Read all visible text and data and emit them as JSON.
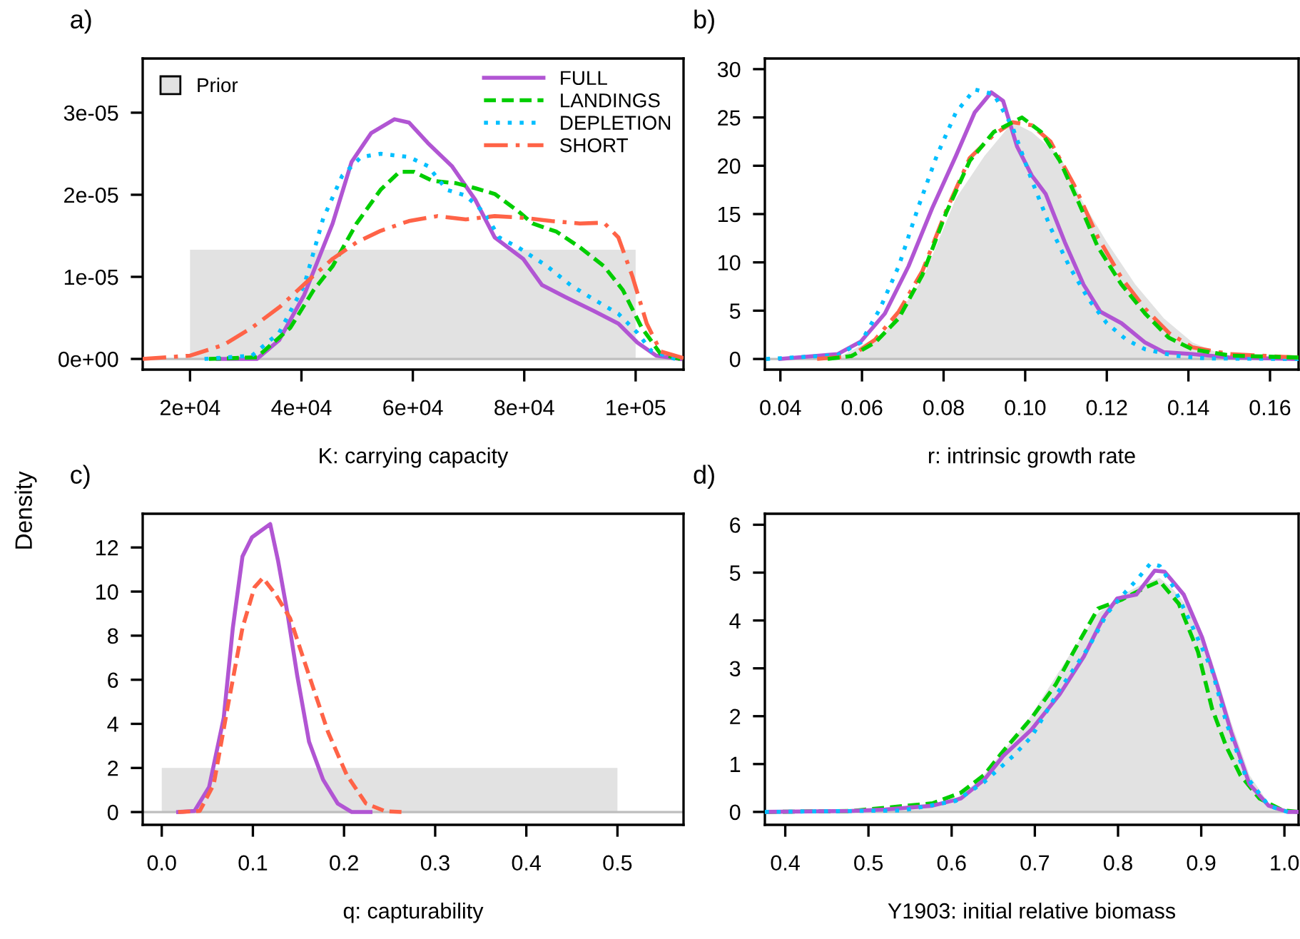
{
  "chart_data": [
    {
      "type": "line",
      "title": "a)",
      "xlabel": "K: carrying capacity",
      "ylabel": "Density",
      "legend": "top right",
      "xlim": [
        11500,
        108600
      ],
      "ylim": [
        -1.3e-06,
        3.66e-05
      ],
      "xticks": [
        {
          "value": 20000,
          "label": "2e+04"
        },
        {
          "value": 40000,
          "label": "4e+04"
        },
        {
          "value": 60000,
          "label": "6e+04"
        },
        {
          "value": 80000,
          "label": "8e+04"
        },
        {
          "value": 100000,
          "label": "1e+05"
        }
      ],
      "yticks": [
        {
          "value": 0,
          "label": "0e+00"
        },
        {
          "value": 1e-05,
          "label": "1e-05"
        },
        {
          "value": 2e-05,
          "label": "2e-05"
        },
        {
          "value": 3e-05,
          "label": "3e-05"
        }
      ],
      "ref_lines": [
        {
          "axis": "y",
          "value": 0,
          "color": "#bebebe"
        }
      ],
      "series": [
        {
          "type": "area",
          "name": "Prior",
          "color": "#e2e2e2",
          "x": [
            20000,
            20000,
            100000,
            100000
          ],
          "values": [
            0,
            1.33e-05,
            1.33e-05,
            0
          ]
        },
        {
          "name": "FULL",
          "color": "#b155d3",
          "line_style": "solid",
          "x": [
            25000,
            32000,
            36000,
            40500,
            45600,
            49000,
            52500,
            56700,
            59300,
            62700,
            67000,
            71200,
            74700,
            79800,
            83200,
            87500,
            92600,
            96900,
            100300,
            103700,
            108000
          ],
          "values": [
            0,
            0,
            2.3e-06,
            7.8e-06,
            1.65e-05,
            2.4e-05,
            2.75e-05,
            2.92e-05,
            2.88e-05,
            2.63e-05,
            2.35e-05,
            1.94e-05,
            1.48e-05,
            1.22e-05,
            9e-06,
            7.5e-06,
            5.8e-06,
            4.3e-06,
            2e-06,
            4e-07,
            0
          ]
        },
        {
          "name": "LANDINGS",
          "color": "#00cd00",
          "line_style": "dashed",
          "x": [
            23400,
            32000,
            38000,
            42200,
            45600,
            49900,
            54200,
            57600,
            60200,
            63500,
            67800,
            71200,
            74700,
            78900,
            81500,
            85800,
            90000,
            94300,
            97700,
            101100,
            104500,
            108000
          ],
          "values": [
            0,
            2e-07,
            3.8e-06,
            8.4e-06,
            1.13e-05,
            1.65e-05,
            2.06e-05,
            2.28e-05,
            2.28e-05,
            2.17e-05,
            2.14e-05,
            2.08e-05,
            2.01e-05,
            1.8e-05,
            1.65e-05,
            1.55e-05,
            1.36e-05,
            1.13e-05,
            8.4e-06,
            3.8e-06,
            6e-07,
            0
          ]
        },
        {
          "name": "DEPLETION",
          "color": "#00bfff",
          "line_style": "dotted",
          "x": [
            22600,
            31100,
            36000,
            40500,
            43900,
            47300,
            50700,
            54200,
            59300,
            62700,
            66100,
            69500,
            73000,
            75500,
            78900,
            84100,
            88300,
            92600,
            96900,
            100300,
            102800,
            107100
          ],
          "values": [
            0,
            4e-07,
            3.2e-06,
            9e-06,
            1.71e-05,
            2.23e-05,
            2.46e-05,
            2.5e-05,
            2.46e-05,
            2.35e-05,
            2.06e-05,
            1.99e-05,
            1.77e-05,
            1.48e-05,
            1.36e-05,
            1.13e-05,
            9e-06,
            7.2e-06,
            5.5e-06,
            3.2e-06,
            1e-06,
            0
          ]
        },
        {
          "name": "SHORT",
          "color": "#ff6347",
          "line_style": "dashdot",
          "x": [
            11500,
            20000,
            26000,
            31100,
            36200,
            41300,
            45600,
            49900,
            54200,
            59300,
            64400,
            69500,
            74700,
            79800,
            84900,
            90000,
            94300,
            96900,
            99400,
            102000,
            104500,
            108600
          ],
          "values": [
            0,
            4e-07,
            1.7e-06,
            3.8e-06,
            6.4e-06,
            9.6e-06,
            1.22e-05,
            1.42e-05,
            1.56e-05,
            1.68e-05,
            1.74e-05,
            1.7e-05,
            1.74e-05,
            1.72e-05,
            1.68e-05,
            1.65e-05,
            1.66e-05,
            1.48e-05,
            1.01e-05,
            4.3e-06,
            9e-07,
            1e-07
          ]
        }
      ]
    },
    {
      "type": "line",
      "title": "b)",
      "xlabel": "r: intrinsic growth rate",
      "xlim": [
        0.0362,
        0.167
      ],
      "ylim": [
        -1.1,
        31.1
      ],
      "xticks": [
        {
          "value": 0.04,
          "label": "0.04"
        },
        {
          "value": 0.06,
          "label": "0.06"
        },
        {
          "value": 0.08,
          "label": "0.08"
        },
        {
          "value": 0.1,
          "label": "0.10"
        },
        {
          "value": 0.12,
          "label": "0.12"
        },
        {
          "value": 0.14,
          "label": "0.14"
        },
        {
          "value": 0.16,
          "label": "0.16"
        }
      ],
      "yticks": [
        0,
        5,
        10,
        15,
        20,
        25,
        30
      ],
      "ref_lines": [
        {
          "axis": "y",
          "value": 0,
          "color": "#bebebe"
        }
      ],
      "series": [
        {
          "type": "area",
          "color": "#e2e2e2",
          "x": [
            0.048,
            0.054,
            0.0656,
            0.0748,
            0.083,
            0.09,
            0.0969,
            0.1016,
            0.1085,
            0.1143,
            0.12,
            0.127,
            0.134,
            0.141,
            0.148,
            0.158,
            0.167
          ],
          "values": [
            0,
            0.1,
            2.7,
            8.2,
            16.6,
            21.0,
            24.5,
            23.5,
            21.0,
            16.1,
            12.1,
            7.7,
            4.2,
            1.7,
            0.5,
            0.05,
            0
          ]
        },
        {
          "color": "#b155d3",
          "line_style": "solid",
          "x": [
            0.04,
            0.054,
            0.0597,
            0.0656,
            0.0714,
            0.0772,
            0.083,
            0.0876,
            0.0917,
            0.0946,
            0.098,
            0.1016,
            0.105,
            0.1097,
            0.1143,
            0.1184,
            0.1236,
            0.1294,
            0.134,
            0.141,
            0.15,
            0.167
          ],
          "values": [
            0,
            0.5,
            1.8,
            4.7,
            9.6,
            15.6,
            21.0,
            25.5,
            27.6,
            26.7,
            22.0,
            19.0,
            17.1,
            12.1,
            7.7,
            4.9,
            3.7,
            1.7,
            0.7,
            0.5,
            0.15,
            0
          ]
        },
        {
          "color": "#00bfff",
          "line_style": "dotted",
          "x": [
            0.0365,
            0.054,
            0.0597,
            0.0644,
            0.069,
            0.0737,
            0.0783,
            0.083,
            0.0876,
            0.0923,
            0.0969,
            0.1016,
            0.1062,
            0.1108,
            0.1155,
            0.12,
            0.1248,
            0.1294,
            0.1364,
            0.1445,
            0.167
          ],
          "values": [
            0,
            0.4,
            1.7,
            5.2,
            9.6,
            15.6,
            21.0,
            25.5,
            27.9,
            27.4,
            24.0,
            18.5,
            13.6,
            9.6,
            6.2,
            3.7,
            2.0,
            1.0,
            0.35,
            0.05,
            0
          ]
        },
        {
          "color": "#ff6347",
          "line_style": "dashdot",
          "x": [
            0.049,
            0.0574,
            0.0632,
            0.069,
            0.0748,
            0.0806,
            0.0864,
            0.0923,
            0.0969,
            0.1016,
            0.1062,
            0.112,
            0.1178,
            0.1236,
            0.1294,
            0.1352,
            0.141,
            0.1503,
            0.167
          ],
          "values": [
            0,
            0.3,
            2.0,
            4.9,
            9.1,
            15.3,
            20.8,
            23.2,
            24.5,
            24.2,
            22.5,
            18.0,
            12.6,
            8.4,
            5.2,
            2.7,
            1.2,
            0.5,
            0.15
          ]
        },
        {
          "color": "#00cd00",
          "line_style": "dashed",
          "x": [
            0.0516,
            0.0574,
            0.0632,
            0.069,
            0.0748,
            0.0806,
            0.0864,
            0.0923,
            0.0992,
            0.1039,
            0.1085,
            0.1132,
            0.1178,
            0.1236,
            0.1294,
            0.1352,
            0.141,
            0.1503,
            0.167
          ],
          "values": [
            0,
            0.3,
            1.7,
            4.2,
            8.7,
            15.1,
            20.5,
            23.5,
            25.0,
            23.5,
            20.5,
            16.1,
            11.6,
            7.7,
            4.7,
            2.2,
            1.0,
            0.35,
            0.15
          ]
        }
      ]
    },
    {
      "type": "line",
      "title": "c)",
      "xlabel": "q: capturability",
      "xlim": [
        -0.0209,
        0.5725
      ],
      "ylim": [
        -0.58,
        13.53
      ],
      "xticks": [
        {
          "value": 0,
          "label": "0.0"
        },
        {
          "value": 0.1,
          "label": "0.1"
        },
        {
          "value": 0.2,
          "label": "0.2"
        },
        {
          "value": 0.3,
          "label": "0.3"
        },
        {
          "value": 0.4,
          "label": "0.4"
        },
        {
          "value": 0.5,
          "label": "0.5"
        }
      ],
      "yticks": [
        0,
        2,
        4,
        6,
        8,
        10,
        12
      ],
      "ref_lines": [
        {
          "axis": "y",
          "value": 0,
          "color": "#bebebe"
        }
      ],
      "series": [
        {
          "type": "area",
          "color": "#e2e2e2",
          "x": [
            0,
            0,
            0.5,
            0.5
          ],
          "values": [
            0,
            2.0,
            2.0,
            0
          ]
        },
        {
          "color": "#b155d3",
          "line_style": "solid",
          "x": [
            0.018,
            0.036,
            0.052,
            0.068,
            0.078,
            0.0886,
            0.099,
            0.1095,
            0.119,
            0.1277,
            0.138,
            0.1486,
            0.1616,
            0.177,
            0.193,
            0.2085,
            0.229
          ],
          "values": [
            0,
            0.05,
            1.14,
            4.27,
            8.36,
            11.6,
            12.46,
            12.78,
            13.06,
            11.38,
            9.0,
            6.2,
            3.19,
            1.47,
            0.39,
            0,
            0
          ]
        },
        {
          "color": "#ff6347",
          "line_style": "dashed",
          "x": [
            0.018,
            0.0417,
            0.057,
            0.073,
            0.0886,
            0.1017,
            0.111,
            0.125,
            0.1408,
            0.1616,
            0.1825,
            0.203,
            0.224,
            0.245,
            0.263
          ],
          "values": [
            0,
            0.05,
            1.25,
            4.91,
            8.36,
            10.19,
            10.62,
            9.87,
            8.79,
            6.2,
            3.62,
            1.68,
            0.39,
            0.04,
            0
          ]
        }
      ]
    },
    {
      "type": "line",
      "title": "d)",
      "xlabel": "Y1903: initial relative biomass",
      "xlim": [
        0.3755,
        1.017
      ],
      "ylim": [
        -0.27,
        6.23
      ],
      "xticks": [
        {
          "value": 0.4,
          "label": "0.4"
        },
        {
          "value": 0.5,
          "label": "0.5"
        },
        {
          "value": 0.6,
          "label": "0.6"
        },
        {
          "value": 0.7,
          "label": "0.7"
        },
        {
          "value": 0.8,
          "label": "0.8"
        },
        {
          "value": 0.9,
          "label": "0.9"
        },
        {
          "value": 1.0,
          "label": "1.0"
        }
      ],
      "yticks": [
        0,
        1,
        2,
        3,
        4,
        5,
        6
      ],
      "ref_lines": [
        {
          "axis": "y",
          "value": 0,
          "color": "#bebebe"
        }
      ],
      "series": [
        {
          "type": "area",
          "color": "#e2e2e2",
          "x": [
            0.3755,
            0.548,
            0.605,
            0.634,
            0.662,
            0.69,
            0.719,
            0.748,
            0.776,
            0.805,
            0.833,
            0.85,
            0.867,
            0.89,
            0.913,
            0.936,
            0.958,
            0.981,
            1.004,
            1.017
          ],
          "values": [
            0,
            0.05,
            0.28,
            0.67,
            1.27,
            1.87,
            2.66,
            3.45,
            4.15,
            4.54,
            4.79,
            4.89,
            4.64,
            4.15,
            3.15,
            1.87,
            0.77,
            0.18,
            0.02,
            0
          ]
        },
        {
          "color": "#00cd00",
          "line_style": "dashed",
          "x": [
            0.3755,
            0.48,
            0.577,
            0.611,
            0.639,
            0.662,
            0.696,
            0.725,
            0.753,
            0.776,
            0.805,
            0.833,
            0.85,
            0.873,
            0.896,
            0.913,
            0.93,
            0.947,
            0.97,
            0.998,
            1.017
          ],
          "values": [
            0,
            0.02,
            0.18,
            0.4,
            0.77,
            1.27,
            1.96,
            2.66,
            3.55,
            4.25,
            4.44,
            4.69,
            4.82,
            4.35,
            3.35,
            2.16,
            1.37,
            0.77,
            0.28,
            0.03,
            0
          ]
        },
        {
          "color": "#b155d3",
          "line_style": "solid",
          "x": [
            0.3755,
            0.48,
            0.52,
            0.577,
            0.611,
            0.639,
            0.662,
            0.696,
            0.73,
            0.759,
            0.782,
            0.799,
            0.822,
            0.844,
            0.856,
            0.879,
            0.901,
            0.919,
            0.936,
            0.958,
            0.981,
            1.004,
            1.017
          ],
          "values": [
            0,
            0.02,
            0.05,
            0.13,
            0.28,
            0.67,
            1.17,
            1.72,
            2.46,
            3.25,
            4.05,
            4.46,
            4.54,
            5.04,
            5.02,
            4.54,
            3.65,
            2.66,
            1.67,
            0.58,
            0.13,
            0,
            0
          ]
        },
        {
          "color": "#00bfff",
          "line_style": "dotted",
          "x": [
            0.3755,
            0.541,
            0.605,
            0.639,
            0.674,
            0.696,
            0.73,
            0.765,
            0.787,
            0.805,
            0.822,
            0.839,
            0.85,
            0.867,
            0.89,
            0.913,
            0.93,
            0.953,
            0.981,
            1.004
          ],
          "values": [
            0,
            0.03,
            0.23,
            0.62,
            1.17,
            1.57,
            2.56,
            3.45,
            4.15,
            4.52,
            4.84,
            5.19,
            5.14,
            4.69,
            3.85,
            2.96,
            1.87,
            0.77,
            0.13,
            0
          ]
        }
      ]
    }
  ]
}
